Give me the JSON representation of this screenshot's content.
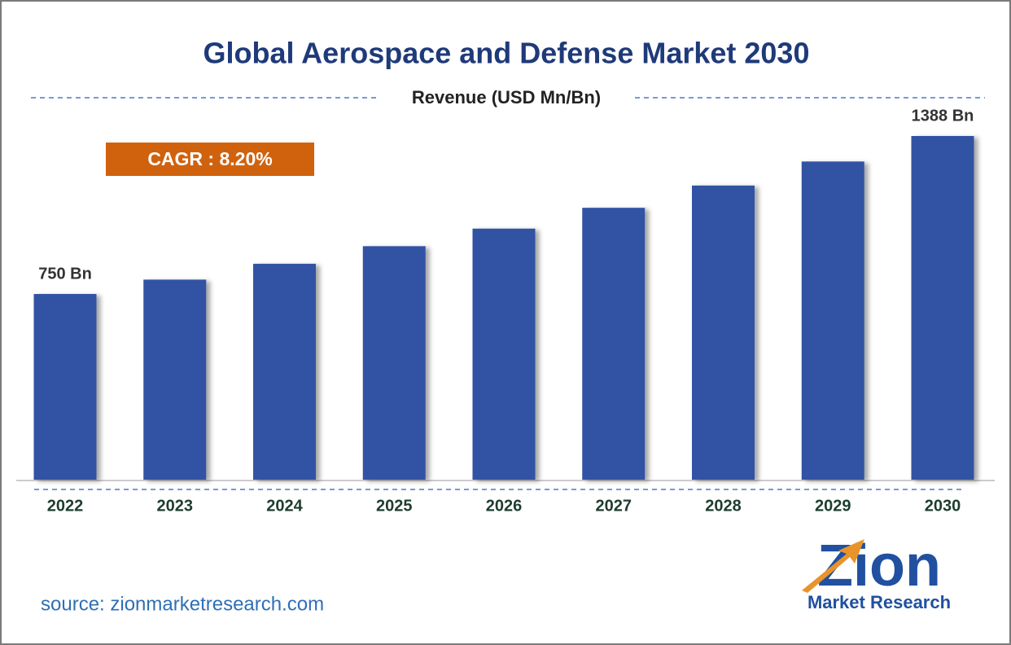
{
  "chart_data": {
    "type": "bar",
    "title": "Global Aerospace and Defense Market 2030",
    "subtitle": "Revenue (USD Mn/Bn)",
    "annotation": "CAGR : 8.20%",
    "source": "source: zionmarketresearch.com",
    "logo": {
      "name": "Zion",
      "tagline": "Market Research"
    },
    "categories": [
      "2022",
      "2023",
      "2024",
      "2025",
      "2026",
      "2027",
      "2028",
      "2029",
      "2030"
    ],
    "values": [
      750,
      808,
      872,
      943,
      1014,
      1098,
      1188,
      1285,
      1388
    ],
    "value_labels": [
      "750 Bn",
      null,
      null,
      null,
      null,
      null,
      null,
      null,
      "1388 Bn"
    ],
    "color": "#3353a4"
  }
}
